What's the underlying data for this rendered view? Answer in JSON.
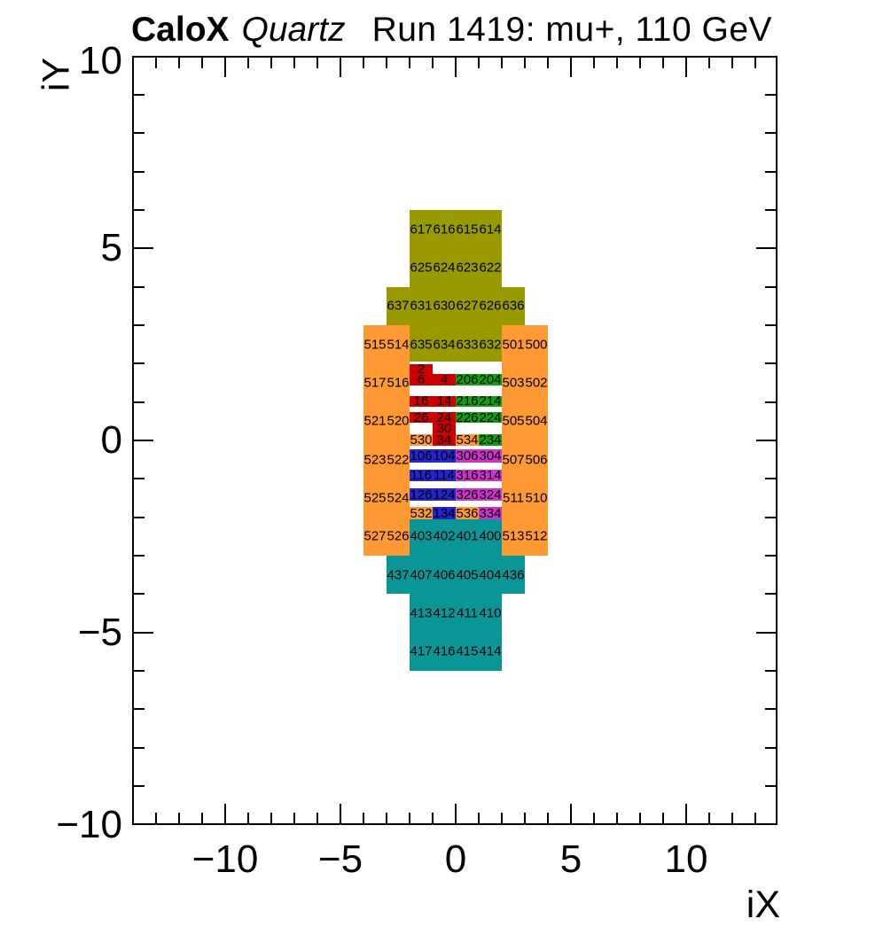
{
  "title": {
    "experiment": "CaloX",
    "detector": "Quartz",
    "run_info": "Run 1419: mu+, 110 GeV"
  },
  "chart_data": {
    "type": "heatmap",
    "title": "CaloX Quartz  Run 1419: mu+, 110 GeV",
    "xlabel": "iX",
    "ylabel": "iY",
    "xlim": [
      -14,
      14
    ],
    "ylim": [
      -10.1,
      10.05
    ],
    "grid": false,
    "legend": "none",
    "x_ticks": [
      {
        "label": "−10",
        "value": -10
      },
      {
        "label": "−5",
        "value": -5
      },
      {
        "label": "0",
        "value": 0
      },
      {
        "label": "5",
        "value": 5
      },
      {
        "label": "10",
        "value": 10
      }
    ],
    "y_ticks": [
      {
        "label": "10",
        "value": 10
      },
      {
        "label": "5",
        "value": 5
      },
      {
        "label": "0",
        "value": 0
      },
      {
        "label": "−5",
        "value": -5
      },
      {
        "label": "−10",
        "value": -10
      }
    ],
    "minor_tick_step": 1,
    "palette": {
      "olive": "#999900",
      "orange": "#ff9933",
      "teal": "#0a9696",
      "red": "#cc0000",
      "green": "#0f9f0f",
      "blue": "#2525cf",
      "magenta": "#cc33cc"
    },
    "blocks": [
      {
        "color": "olive",
        "x0": -2,
        "x1": 2,
        "y0": 4,
        "y1": 6
      },
      {
        "color": "olive",
        "x0": -3,
        "x1": 3,
        "y0": 3,
        "y1": 4
      },
      {
        "color": "olive",
        "x0": -2,
        "x1": 2,
        "y0": 2.05,
        "y1": 3
      },
      {
        "color": "orange",
        "x0": -4,
        "x1": -2,
        "y0": -3,
        "y1": 3
      },
      {
        "color": "orange",
        "x0": 2,
        "x1": 4,
        "y0": -3,
        "y1": 3
      },
      {
        "color": "teal",
        "x0": -2,
        "x1": 2,
        "y0": -3,
        "y1": -2
      },
      {
        "color": "teal",
        "x0": -3,
        "x1": 3,
        "y0": -4,
        "y1": -3
      },
      {
        "color": "teal",
        "x0": -2,
        "x1": 2,
        "y0": -6,
        "y1": -4
      }
    ],
    "channel_labels": [
      {
        "text": "617",
        "x": -1.5,
        "y": 5.5
      },
      {
        "text": "616",
        "x": -0.5,
        "y": 5.5
      },
      {
        "text": "615",
        "x": 0.5,
        "y": 5.5
      },
      {
        "text": "614",
        "x": 1.5,
        "y": 5.5
      },
      {
        "text": "625",
        "x": -1.5,
        "y": 4.5
      },
      {
        "text": "624",
        "x": -0.5,
        "y": 4.5
      },
      {
        "text": "623",
        "x": 0.5,
        "y": 4.5
      },
      {
        "text": "622",
        "x": 1.5,
        "y": 4.5
      },
      {
        "text": "637",
        "x": -2.5,
        "y": 3.5
      },
      {
        "text": "631",
        "x": -1.5,
        "y": 3.5
      },
      {
        "text": "630",
        "x": -0.5,
        "y": 3.5
      },
      {
        "text": "627",
        "x": 0.5,
        "y": 3.5
      },
      {
        "text": "626",
        "x": 1.5,
        "y": 3.5
      },
      {
        "text": "636",
        "x": 2.5,
        "y": 3.5
      },
      {
        "text": "635",
        "x": -1.5,
        "y": 2.5
      },
      {
        "text": "634",
        "x": -0.5,
        "y": 2.5
      },
      {
        "text": "633",
        "x": 0.5,
        "y": 2.5
      },
      {
        "text": "632",
        "x": 1.5,
        "y": 2.5
      },
      {
        "text": "515",
        "x": -3.5,
        "y": 2.5
      },
      {
        "text": "514",
        "x": -2.5,
        "y": 2.5
      },
      {
        "text": "501",
        "x": 2.5,
        "y": 2.5
      },
      {
        "text": "500",
        "x": 3.5,
        "y": 2.5
      },
      {
        "text": "517",
        "x": -3.5,
        "y": 1.5
      },
      {
        "text": "516",
        "x": -2.5,
        "y": 1.5
      },
      {
        "text": "503",
        "x": 2.5,
        "y": 1.5
      },
      {
        "text": "502",
        "x": 3.5,
        "y": 1.5
      },
      {
        "text": "521",
        "x": -3.5,
        "y": 0.5
      },
      {
        "text": "520",
        "x": -2.5,
        "y": 0.5
      },
      {
        "text": "505",
        "x": 2.5,
        "y": 0.5
      },
      {
        "text": "504",
        "x": 3.5,
        "y": 0.5
      },
      {
        "text": "523",
        "x": -3.5,
        "y": -0.5
      },
      {
        "text": "522",
        "x": -2.5,
        "y": -0.5
      },
      {
        "text": "507",
        "x": 2.5,
        "y": -0.5
      },
      {
        "text": "506",
        "x": 3.5,
        "y": -0.5
      },
      {
        "text": "525",
        "x": -3.5,
        "y": -1.5
      },
      {
        "text": "524",
        "x": -2.5,
        "y": -1.5
      },
      {
        "text": "511",
        "x": 2.5,
        "y": -1.5
      },
      {
        "text": "510",
        "x": 3.5,
        "y": -1.5
      },
      {
        "text": "527",
        "x": -3.5,
        "y": -2.5
      },
      {
        "text": "526",
        "x": -2.5,
        "y": -2.5
      },
      {
        "text": "513",
        "x": 2.5,
        "y": -2.5
      },
      {
        "text": "512",
        "x": 3.5,
        "y": -2.5
      },
      {
        "text": "403",
        "x": -1.5,
        "y": -2.5
      },
      {
        "text": "402",
        "x": -0.5,
        "y": -2.5
      },
      {
        "text": "401",
        "x": 0.5,
        "y": -2.5
      },
      {
        "text": "400",
        "x": 1.5,
        "y": -2.5
      },
      {
        "text": "437",
        "x": -2.5,
        "y": -3.5
      },
      {
        "text": "407",
        "x": -1.5,
        "y": -3.5
      },
      {
        "text": "406",
        "x": -0.5,
        "y": -3.5
      },
      {
        "text": "405",
        "x": 0.5,
        "y": -3.5
      },
      {
        "text": "404",
        "x": 1.5,
        "y": -3.5
      },
      {
        "text": "436",
        "x": 2.5,
        "y": -3.5
      },
      {
        "text": "413",
        "x": -1.5,
        "y": -4.5
      },
      {
        "text": "412",
        "x": -0.5,
        "y": -4.5
      },
      {
        "text": "411",
        "x": 0.5,
        "y": -4.5
      },
      {
        "text": "410",
        "x": 1.5,
        "y": -4.5
      },
      {
        "text": "417",
        "x": -1.5,
        "y": -5.5
      },
      {
        "text": "416",
        "x": -0.5,
        "y": -5.5
      },
      {
        "text": "415",
        "x": 0.5,
        "y": -5.5
      },
      {
        "text": "414",
        "x": 1.5,
        "y": -5.5
      }
    ],
    "fine_cells": [
      {
        "text": "2",
        "color": "red",
        "x0": -2,
        "x1": -1,
        "y0": 1.73,
        "y1": 1.99
      },
      {
        "text": "6",
        "color": "red",
        "x0": -2,
        "x1": -1,
        "y0": 1.44,
        "y1": 1.73
      },
      {
        "text": "4",
        "color": "red",
        "x0": -1,
        "x1": 0,
        "y0": 1.44,
        "y1": 1.73
      },
      {
        "text": "206",
        "color": "green",
        "x0": 0,
        "x1": 1,
        "y0": 1.44,
        "y1": 1.73
      },
      {
        "text": "204",
        "color": "green",
        "x0": 1,
        "x1": 2,
        "y0": 1.44,
        "y1": 1.73
      },
      {
        "text": "16",
        "color": "red",
        "x0": -2,
        "x1": -1,
        "y0": 0.87,
        "y1": 1.16
      },
      {
        "text": "14",
        "color": "red",
        "x0": -1,
        "x1": 0,
        "y0": 0.87,
        "y1": 1.16
      },
      {
        "text": "216",
        "color": "green",
        "x0": 0,
        "x1": 1,
        "y0": 0.87,
        "y1": 1.16
      },
      {
        "text": "214",
        "color": "green",
        "x0": 1,
        "x1": 2,
        "y0": 0.87,
        "y1": 1.16
      },
      {
        "text": "26",
        "color": "red",
        "x0": -2,
        "x1": -1,
        "y0": 0.45,
        "y1": 0.74
      },
      {
        "text": "24",
        "color": "red",
        "x0": -1,
        "x1": 0,
        "y0": 0.45,
        "y1": 0.74
      },
      {
        "text": "226",
        "color": "green",
        "x0": 0,
        "x1": 1,
        "y0": 0.45,
        "y1": 0.74
      },
      {
        "text": "224",
        "color": "green",
        "x0": 1,
        "x1": 2,
        "y0": 0.45,
        "y1": 0.74
      },
      {
        "text": "30",
        "color": "red",
        "x0": -1,
        "x1": 0,
        "y0": 0.16,
        "y1": 0.45
      },
      {
        "text": "530",
        "color": "orange",
        "x0": -2,
        "x1": -1,
        "y0": -0.13,
        "y1": 0.16
      },
      {
        "text": "34",
        "color": "red",
        "x0": -1,
        "x1": 0,
        "y0": -0.13,
        "y1": 0.16
      },
      {
        "text": "534",
        "color": "orange",
        "x0": 0,
        "x1": 1,
        "y0": -0.13,
        "y1": 0.16
      },
      {
        "text": "234",
        "color": "green",
        "x0": 1,
        "x1": 2,
        "y0": -0.13,
        "y1": 0.16
      },
      {
        "text": "106",
        "color": "blue",
        "x0": -2,
        "x1": -1,
        "y0": -0.57,
        "y1": -0.23
      },
      {
        "text": "104",
        "color": "blue",
        "x0": -1,
        "x1": 0,
        "y0": -0.57,
        "y1": -0.23
      },
      {
        "text": "306",
        "color": "magenta",
        "x0": 0,
        "x1": 1,
        "y0": -0.57,
        "y1": -0.23
      },
      {
        "text": "304",
        "color": "magenta",
        "x0": 1,
        "x1": 2,
        "y0": -0.57,
        "y1": -0.23
      },
      {
        "text": "116",
        "color": "blue",
        "x0": -2,
        "x1": -1,
        "y0": -1.05,
        "y1": -0.76
      },
      {
        "text": "114",
        "color": "blue",
        "x0": -1,
        "x1": 0,
        "y0": -1.05,
        "y1": -0.76
      },
      {
        "text": "316",
        "color": "magenta",
        "x0": 0,
        "x1": 1,
        "y0": -1.05,
        "y1": -0.76
      },
      {
        "text": "314",
        "color": "magenta",
        "x0": 1,
        "x1": 2,
        "y0": -1.05,
        "y1": -0.76
      },
      {
        "text": "126",
        "color": "blue",
        "x0": -2,
        "x1": -1,
        "y0": -1.57,
        "y1": -1.25
      },
      {
        "text": "124",
        "color": "blue",
        "x0": -1,
        "x1": 0,
        "y0": -1.57,
        "y1": -1.25
      },
      {
        "text": "326",
        "color": "magenta",
        "x0": 0,
        "x1": 1,
        "y0": -1.57,
        "y1": -1.25
      },
      {
        "text": "324",
        "color": "magenta",
        "x0": 1,
        "x1": 2,
        "y0": -1.57,
        "y1": -1.25
      },
      {
        "text": "532",
        "color": "orange",
        "x0": -2,
        "x1": -1,
        "y0": -2.05,
        "y1": -1.74
      },
      {
        "text": "134",
        "color": "blue",
        "x0": -1,
        "x1": 0,
        "y0": -2.05,
        "y1": -1.74
      },
      {
        "text": "536",
        "color": "orange",
        "x0": 0,
        "x1": 1,
        "y0": -2.05,
        "y1": -1.74
      },
      {
        "text": "334",
        "color": "magenta",
        "x0": 1,
        "x1": 2,
        "y0": -2.05,
        "y1": -1.74
      }
    ]
  }
}
